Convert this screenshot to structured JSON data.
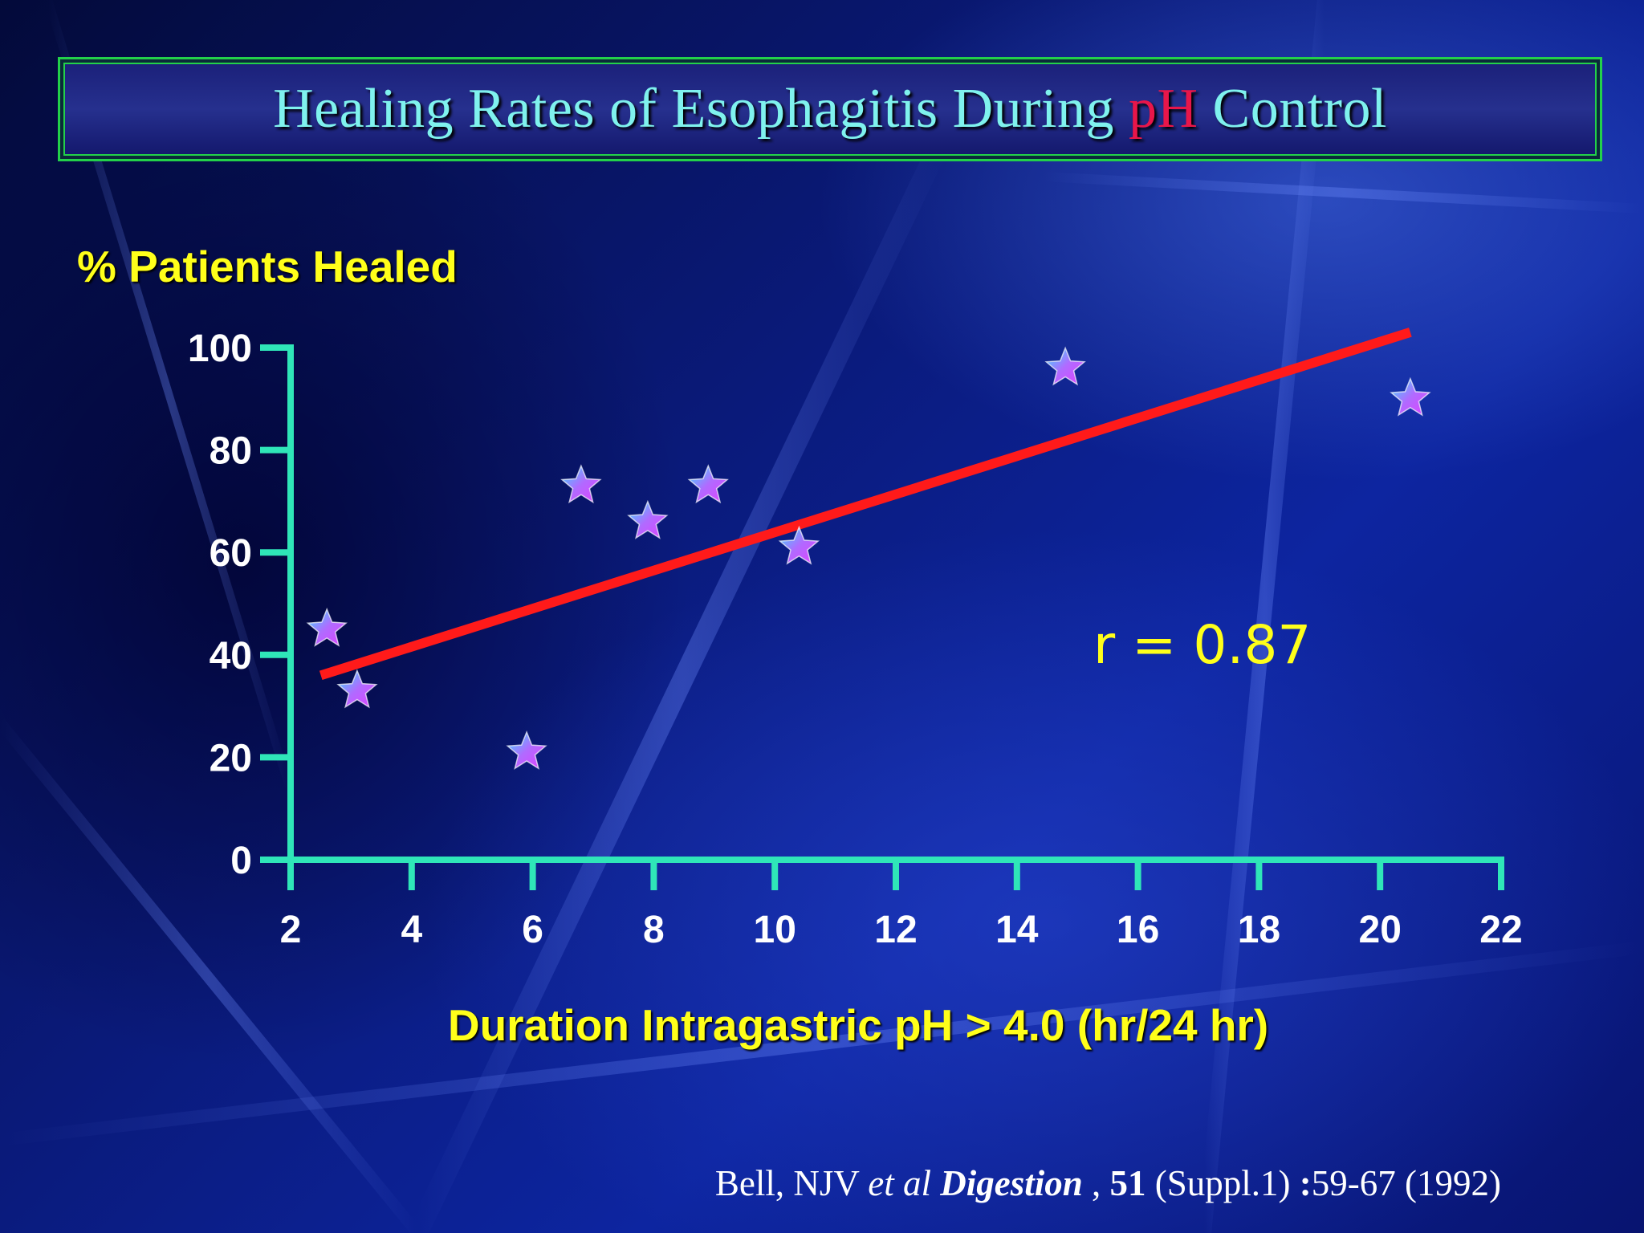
{
  "title": {
    "part1": "Healing Rates of Esophagitis During ",
    "highlight": "pH",
    "part2": " Control"
  },
  "colors": {
    "axis": "#2fe6b8",
    "regression_line": "#ff1a1a",
    "label_yellow": "#ffff1a",
    "title_text": "#7ff2ee",
    "title_highlight": "#e8164a",
    "star_fill_a": "#33e0ff",
    "star_fill_b": "#e040ff"
  },
  "annotation": "r = 0.87",
  "citation": {
    "author": "Bell, NJV ",
    "etal": "et al",
    "journal": "Digestion",
    "sep": " , ",
    "volume": "51",
    "supp": " (Suppl.1) ",
    "colon": ":",
    "pages": "59-67 (1992)"
  },
  "chart_data": {
    "type": "scatter",
    "title": "Healing Rates of Esophagitis During pH Control",
    "xlabel": "Duration Intragastric pH > 4.0 (hr/24 hr)",
    "ylabel": "% Patients Healed",
    "xlim": [
      2,
      22
    ],
    "ylim": [
      0,
      100
    ],
    "x_ticks": [
      2,
      4,
      6,
      8,
      10,
      12,
      14,
      16,
      18,
      20,
      22
    ],
    "y_ticks": [
      0,
      20,
      40,
      60,
      80,
      100
    ],
    "marker": "star",
    "series": [
      {
        "points": [
          {
            "x": 2.6,
            "y": 45
          },
          {
            "x": 3.1,
            "y": 33
          },
          {
            "x": 5.9,
            "y": 21
          },
          {
            "x": 6.8,
            "y": 73
          },
          {
            "x": 7.9,
            "y": 66
          },
          {
            "x": 8.9,
            "y": 73
          },
          {
            "x": 10.4,
            "y": 61
          },
          {
            "x": 14.8,
            "y": 96
          },
          {
            "x": 20.5,
            "y": 90
          }
        ]
      }
    ],
    "regression_line": {
      "x": [
        2.5,
        20.5
      ],
      "y": [
        36,
        103
      ]
    },
    "annotations": [
      "r = 0.87"
    ],
    "grid": false
  }
}
